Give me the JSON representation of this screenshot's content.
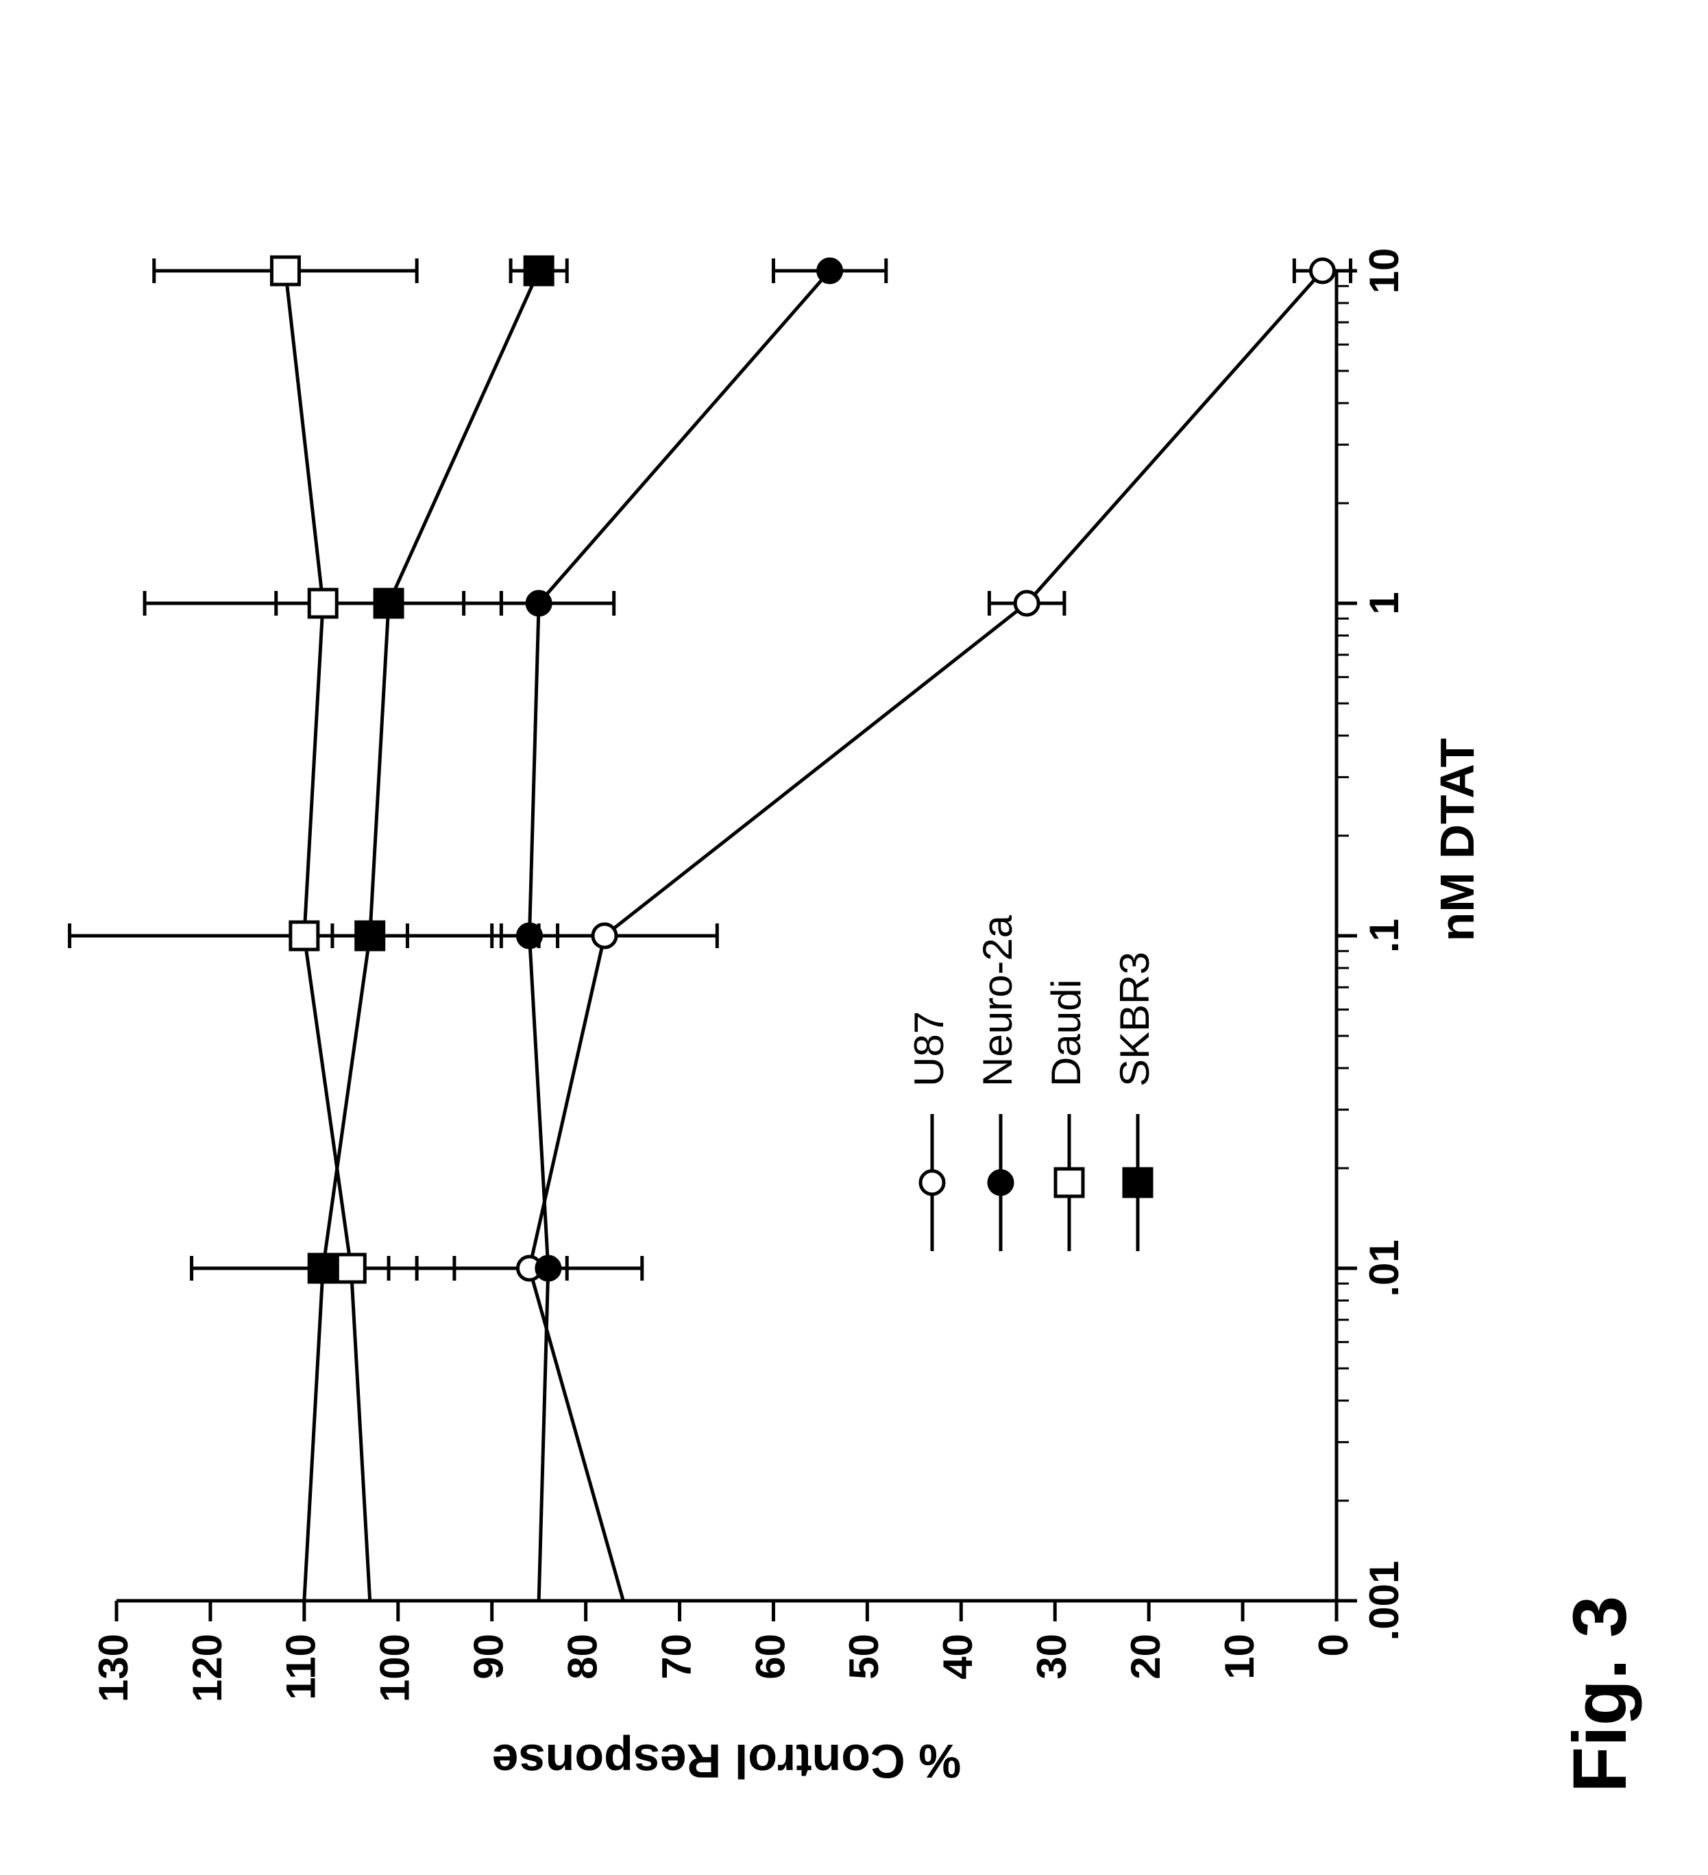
{
  "figure_label": "Fig. 3",
  "chart": {
    "type": "line-scatter-errorbar",
    "background_color": "#ffffff",
    "stroke_color": "#000000",
    "axis_line_width": 5,
    "data_line_width": 5,
    "error_bar_line_width": 5,
    "error_cap_half_width": 18,
    "marker_stroke_width": 5,
    "tick_font_size": 60,
    "label_font_size": 70,
    "figure_label_font_size": 110,
    "legend_font_size": 60,
    "font_weight_axis_label": "bold",
    "font_weight_ticks": "bold",
    "font_weight_figure_label": "bold",
    "xlabel": "nM DTAT",
    "ylabel": "% Control Response",
    "x_log": true,
    "xlim_log10": [
      -3,
      1
    ],
    "ylim": [
      0,
      130
    ],
    "ytick_step": 10,
    "yticks": [
      0,
      10,
      20,
      30,
      40,
      50,
      60,
      70,
      80,
      90,
      100,
      110,
      120,
      130
    ],
    "xticks_log10": [
      -3,
      -2,
      -1,
      0,
      1
    ],
    "xtick_labels": [
      ".001",
      ".01",
      ".1",
      "1",
      "10"
    ],
    "major_tick_len": 30,
    "minor_tick_len": 18,
    "series": [
      {
        "name": "U87",
        "marker": "circle-open",
        "marker_size": 34,
        "marker_fill": "#ffffff",
        "marker_stroke": "#000000",
        "line_color": "#000000",
        "start": {
          "x_log10": -3,
          "y": 76
        },
        "points": [
          {
            "x_log10": -2,
            "y": 86,
            "err": 12
          },
          {
            "x_log10": -1,
            "y": 78,
            "err": 12
          },
          {
            "x_log10": 0,
            "y": 33,
            "err": 4
          },
          {
            "x_log10": 1,
            "y": 1.5,
            "err": 3
          }
        ]
      },
      {
        "name": "Neuro-2a",
        "marker": "circle-filled",
        "marker_size": 34,
        "marker_fill": "#000000",
        "marker_stroke": "#000000",
        "line_color": "#000000",
        "start": {
          "x_log10": -3,
          "y": 85
        },
        "points": [
          {
            "x_log10": -2,
            "y": 84,
            "err": 2
          },
          {
            "x_log10": -1,
            "y": 86,
            "err": 3
          },
          {
            "x_log10": 0,
            "y": 85,
            "err": 8
          },
          {
            "x_log10": 1,
            "y": 54,
            "err": 6
          }
        ]
      },
      {
        "name": "Daudi",
        "marker": "square-open",
        "marker_size": 40,
        "marker_fill": "#ffffff",
        "marker_stroke": "#000000",
        "line_color": "#000000",
        "start": {
          "x_log10": -3,
          "y": 103
        },
        "points": [
          {
            "x_log10": -2,
            "y": 105,
            "err": 4
          },
          {
            "x_log10": -1,
            "y": 110,
            "err": 25
          },
          {
            "x_log10": 0,
            "y": 108,
            "err": 19
          },
          {
            "x_log10": 1,
            "y": 112,
            "err": 14
          }
        ]
      },
      {
        "name": "SKBR3",
        "marker": "square-filled",
        "marker_size": 40,
        "marker_fill": "#000000",
        "marker_stroke": "#000000",
        "line_color": "#000000",
        "start": {
          "x_log10": -3,
          "y": 110
        },
        "points": [
          {
            "x_log10": -2,
            "y": 108,
            "err": 14
          },
          {
            "x_log10": -1,
            "y": 103,
            "err": 4
          },
          {
            "x_log10": 0,
            "y": 101,
            "err": 12
          },
          {
            "x_log10": 1,
            "y": 85,
            "err": 3
          }
        ]
      }
    ]
  },
  "legend": {
    "items": [
      "U87",
      "Neuro-2a",
      "Daudi",
      "SKBR3"
    ]
  }
}
